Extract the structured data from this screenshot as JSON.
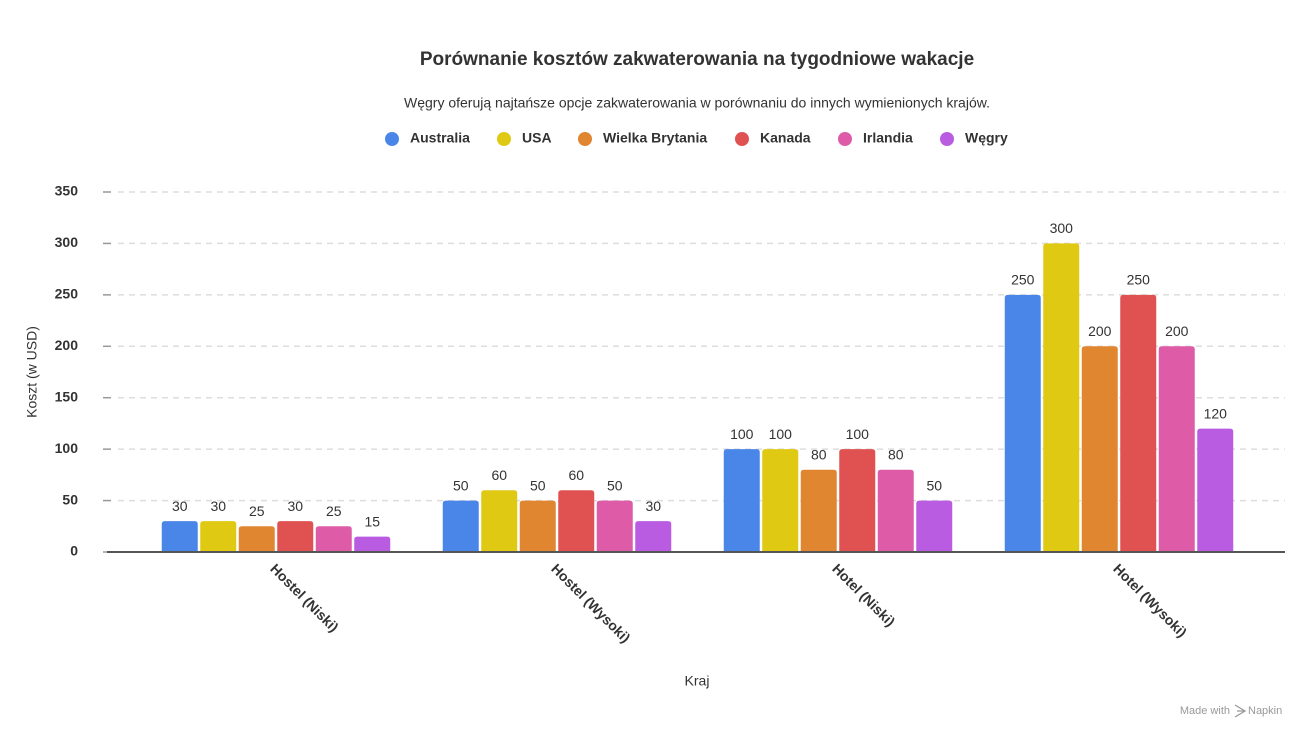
{
  "chart_data": {
    "type": "bar",
    "title": "Porównanie kosztów zakwaterowania na tygodniowe wakacje",
    "subtitle": "Węgry oferują najtańsze opcje zakwaterowania w porównaniu do innych wymienionych krajów.",
    "x_label": "Kraj",
    "y_label": "Koszt (w USD)",
    "categories": [
      "Hostel (Niski)",
      "Hostel (Wysoki)",
      "Hotel (Niski)",
      "Hotel (Wysoki)"
    ],
    "series": [
      {
        "name": "Australia",
        "color": "#4a86e8",
        "values": [
          30,
          50,
          100,
          250
        ]
      },
      {
        "name": "USA",
        "color": "#dfc913",
        "values": [
          30,
          60,
          100,
          300
        ]
      },
      {
        "name": "Wielka Brytania",
        "color": "#e08530",
        "values": [
          25,
          50,
          80,
          200
        ]
      },
      {
        "name": "Kanada",
        "color": "#e05252",
        "values": [
          30,
          60,
          100,
          250
        ]
      },
      {
        "name": "Irlandia",
        "color": "#de5ba8",
        "values": [
          25,
          50,
          80,
          200
        ]
      },
      {
        "name": "Węgry",
        "color": "#b95ce2",
        "values": [
          15,
          30,
          50,
          120
        ]
      }
    ],
    "ylim": [
      0,
      350
    ],
    "yticks": [
      0,
      50,
      100,
      150,
      200,
      250,
      300,
      350
    ],
    "grid": true,
    "legend": "top"
  },
  "footer": {
    "text": "Made with",
    "brand": "Napkin"
  }
}
